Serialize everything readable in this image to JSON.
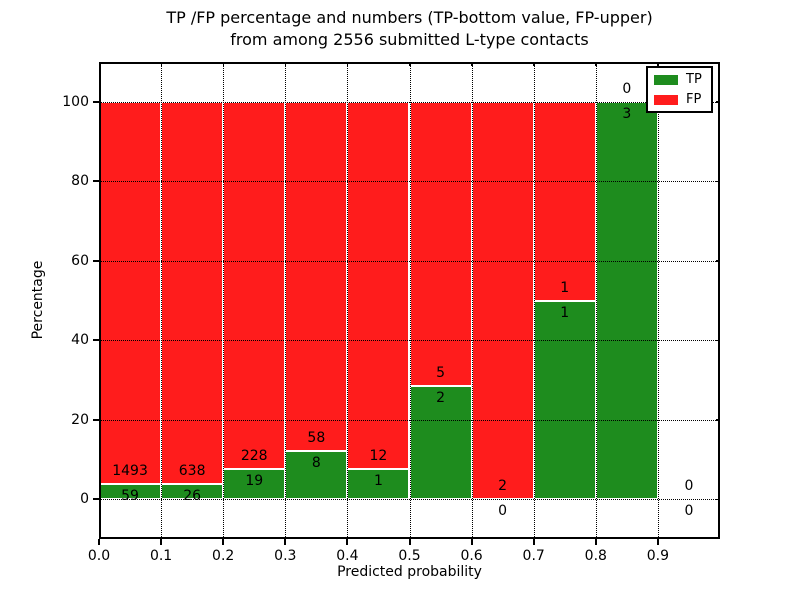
{
  "chart_data": {
    "type": "bar",
    "stacked": true,
    "title_lines": [
      "TP /FP percentage and numbers (TP-bottom value, FP-upper)",
      "from among 2556 submitted L-type contacts"
    ],
    "xlabel": "Predicted probability",
    "ylabel": "Percentage",
    "total_submitted": 2556,
    "bins": {
      "start": [
        0.0,
        0.1,
        0.2,
        0.3,
        0.4,
        0.5,
        0.6,
        0.7,
        0.8,
        0.9
      ],
      "width": 0.1
    },
    "series": [
      {
        "name": "TP",
        "color": "#1e8c1e",
        "counts": [
          59,
          26,
          19,
          8,
          1,
          2,
          0,
          1,
          3,
          0
        ]
      },
      {
        "name": "FP",
        "color": "#ff1c1c",
        "counts": [
          1493,
          638,
          228,
          58,
          12,
          5,
          2,
          1,
          0,
          0
        ]
      }
    ],
    "tp_percent_per_bin": [
      3.8,
      3.92,
      7.69,
      12.12,
      7.69,
      28.57,
      0,
      50,
      100,
      null
    ],
    "x_tick_labels": [
      "0.0",
      "0.1",
      "0.2",
      "0.3",
      "0.4",
      "0.5",
      "0.6",
      "0.7",
      "0.8",
      "0.9"
    ],
    "x_tick_values": [
      0.0,
      0.1,
      0.2,
      0.3,
      0.4,
      0.5,
      0.6,
      0.7,
      0.8,
      0.9
    ],
    "y_tick_labels": [
      "0",
      "20",
      "40",
      "60",
      "80",
      "100"
    ],
    "y_tick_values": [
      0,
      20,
      40,
      60,
      80,
      100
    ],
    "xlim": [
      0,
      1
    ],
    "ylim": [
      -10,
      110
    ],
    "grid": {
      "visible": true,
      "style": "dotted",
      "color": "#000000"
    },
    "legend": {
      "position": "upper-right",
      "entries": [
        {
          "label": "TP",
          "color": "#1e8c1e"
        },
        {
          "label": "FP",
          "color": "#ff1c1c"
        }
      ]
    },
    "bar_edge_color": "#ffffff",
    "background": "#ffffff"
  }
}
